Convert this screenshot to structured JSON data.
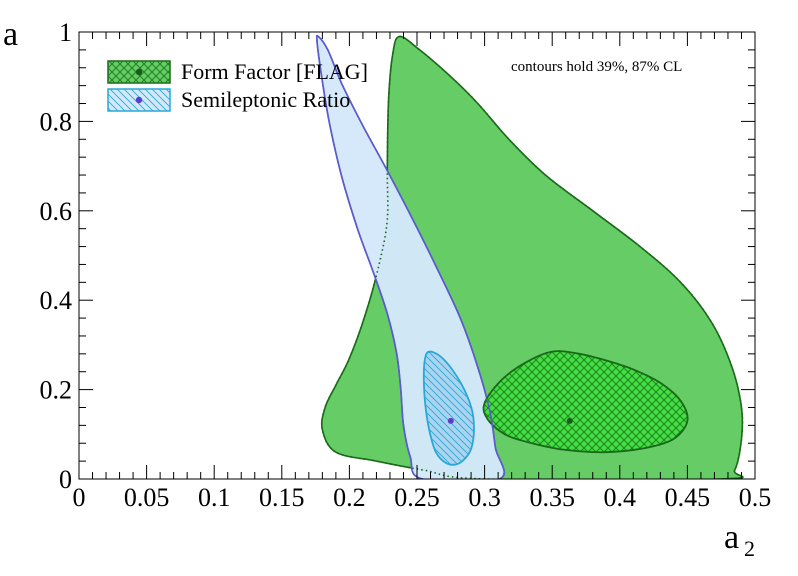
{
  "chart_data": {
    "type": "contour",
    "xlabel": "a",
    "xlabel_sub": "2",
    "ylabel": "a",
    "xlim": [
      0,
      0.5
    ],
    "ylim": [
      0,
      1
    ],
    "xticks": [
      "0",
      "0.05",
      "0.1",
      "0.15",
      "0.2",
      "0.25",
      "0.3",
      "0.35",
      "0.4",
      "0.45",
      "0.5"
    ],
    "yticks": [
      "0",
      "0.2",
      "0.4",
      "0.6",
      "0.8",
      "1"
    ],
    "annotation": "contours hold 39%, 87% CL",
    "legend_position": "top-left",
    "series": [
      {
        "name": "Form Factor [FLAG]",
        "color_fill_outer": "#66cc66",
        "color_fill_inner": "#44dd44",
        "color_line": "#1a6a1a",
        "best_fit": {
          "x": 0.363,
          "y": 0.13
        },
        "contour_87": [
          [
            0.237,
            0.99
          ],
          [
            0.252,
            0.96
          ],
          [
            0.275,
            0.9
          ],
          [
            0.295,
            0.84
          ],
          [
            0.318,
            0.76
          ],
          [
            0.345,
            0.68
          ],
          [
            0.38,
            0.6
          ],
          [
            0.415,
            0.52
          ],
          [
            0.445,
            0.44
          ],
          [
            0.468,
            0.35
          ],
          [
            0.483,
            0.25
          ],
          [
            0.49,
            0.16
          ],
          [
            0.49,
            0.09
          ],
          [
            0.485,
            0.02
          ],
          [
            0.475,
            0.0
          ],
          [
            0.3,
            0.0
          ],
          [
            0.255,
            0.02
          ],
          [
            0.22,
            0.04
          ],
          [
            0.19,
            0.06
          ],
          [
            0.18,
            0.11
          ],
          [
            0.182,
            0.16
          ],
          [
            0.19,
            0.21
          ],
          [
            0.2,
            0.27
          ],
          [
            0.212,
            0.37
          ],
          [
            0.222,
            0.48
          ],
          [
            0.228,
            0.58
          ],
          [
            0.228,
            0.7
          ],
          [
            0.229,
            0.85
          ],
          [
            0.232,
            0.95
          ]
        ],
        "contour_39": [
          [
            0.3,
            0.17
          ],
          [
            0.312,
            0.22
          ],
          [
            0.33,
            0.26
          ],
          [
            0.35,
            0.285
          ],
          [
            0.37,
            0.28
          ],
          [
            0.39,
            0.265
          ],
          [
            0.41,
            0.245
          ],
          [
            0.43,
            0.215
          ],
          [
            0.445,
            0.175
          ],
          [
            0.45,
            0.13
          ],
          [
            0.44,
            0.09
          ],
          [
            0.42,
            0.07
          ],
          [
            0.39,
            0.06
          ],
          [
            0.36,
            0.065
          ],
          [
            0.335,
            0.08
          ],
          [
            0.315,
            0.1
          ],
          [
            0.302,
            0.135
          ]
        ]
      },
      {
        "name": "Semileptonic Ratio",
        "color_fill_outer": "#d4e8fb",
        "color_fill_inner": "#aad4f0",
        "color_line": "#5b5bcc",
        "color_line_inner": "#29a8d8",
        "best_fit": {
          "x": 0.275,
          "y": 0.13
        },
        "contour_87": [
          [
            0.177,
            0.99
          ],
          [
            0.184,
            0.96
          ],
          [
            0.195,
            0.88
          ],
          [
            0.21,
            0.79
          ],
          [
            0.228,
            0.69
          ],
          [
            0.247,
            0.58
          ],
          [
            0.265,
            0.47
          ],
          [
            0.282,
            0.36
          ],
          [
            0.295,
            0.25
          ],
          [
            0.304,
            0.15
          ],
          [
            0.308,
            0.07
          ],
          [
            0.311,
            0.0
          ],
          [
            0.254,
            0.0
          ],
          [
            0.245,
            0.05
          ],
          [
            0.24,
            0.12
          ],
          [
            0.238,
            0.2
          ],
          [
            0.235,
            0.28
          ],
          [
            0.228,
            0.37
          ],
          [
            0.218,
            0.46
          ],
          [
            0.206,
            0.56
          ],
          [
            0.194,
            0.68
          ],
          [
            0.185,
            0.8
          ],
          [
            0.179,
            0.91
          ],
          [
            0.176,
            0.98
          ]
        ],
        "contour_39": [
          [
            0.259,
            0.285
          ],
          [
            0.267,
            0.275
          ],
          [
            0.276,
            0.245
          ],
          [
            0.285,
            0.2
          ],
          [
            0.291,
            0.15
          ],
          [
            0.292,
            0.1
          ],
          [
            0.289,
            0.06
          ],
          [
            0.281,
            0.035
          ],
          [
            0.272,
            0.035
          ],
          [
            0.264,
            0.06
          ],
          [
            0.259,
            0.11
          ],
          [
            0.256,
            0.17
          ],
          [
            0.255,
            0.23
          ],
          [
            0.256,
            0.27
          ]
        ]
      }
    ]
  }
}
